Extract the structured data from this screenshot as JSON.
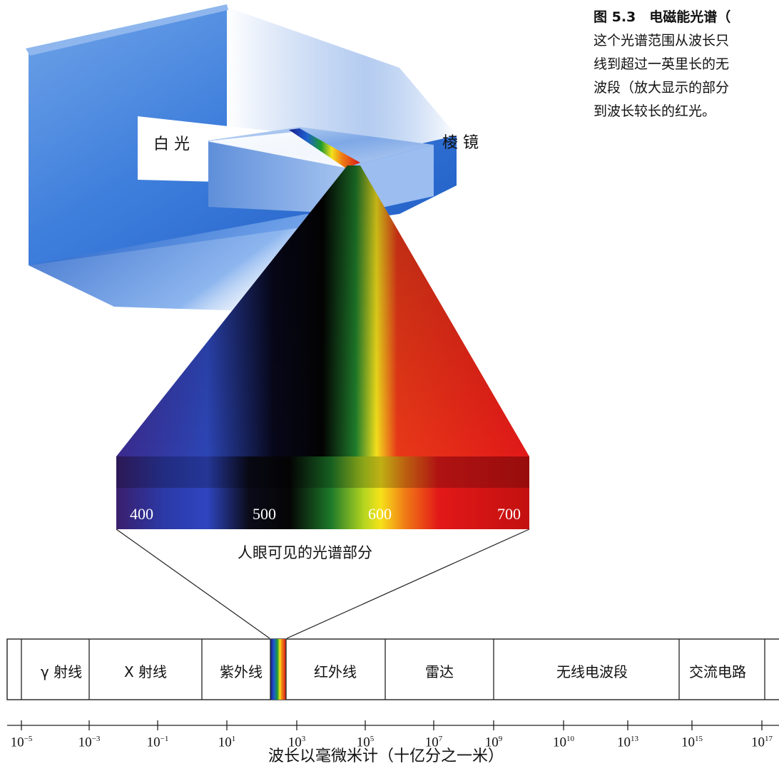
{
  "caption": {
    "title": "图 5.3　电磁能光谱（",
    "lines": [
      "这个光谱范围从波长只",
      "线到超过一英里长的无",
      "波段（放大显示的部分",
      "到波长较长的红光。"
    ]
  },
  "prism_scene": {
    "white_light_label": "白 光",
    "prism_label": "棱 镜"
  },
  "visible_spectrum": {
    "label": "人眼可见的光谱部分",
    "wavelengths": [
      "400",
      "500",
      "600",
      "700"
    ]
  },
  "em_spectrum": {
    "regions": [
      "γ 射线",
      "X 射线",
      "紫外线",
      "红外线",
      "雷达",
      "无线电波段",
      "交流电路"
    ],
    "ticks": [
      {
        "base": "10",
        "exp": "−5"
      },
      {
        "base": "10",
        "exp": "−3"
      },
      {
        "base": "10",
        "exp": "−1"
      },
      {
        "base": "10",
        "exp": "1"
      },
      {
        "base": "10",
        "exp": "3"
      },
      {
        "base": "10",
        "exp": "5"
      },
      {
        "base": "10",
        "exp": "7"
      },
      {
        "base": "10",
        "exp": "9"
      },
      {
        "base": "10",
        "exp": "10"
      },
      {
        "base": "10",
        "exp": "13"
      },
      {
        "base": "10",
        "exp": "15"
      },
      {
        "base": "10",
        "exp": "17"
      }
    ],
    "axis_title": "波长以毫微米计（十亿分之一米）"
  },
  "colors": {
    "wall_blue": "#2f6fd0",
    "violet": "#3a1f6e",
    "blue": "#2b3aa8",
    "green": "#1d7a2a",
    "yellow": "#f6e21a",
    "red": "#e21818"
  }
}
